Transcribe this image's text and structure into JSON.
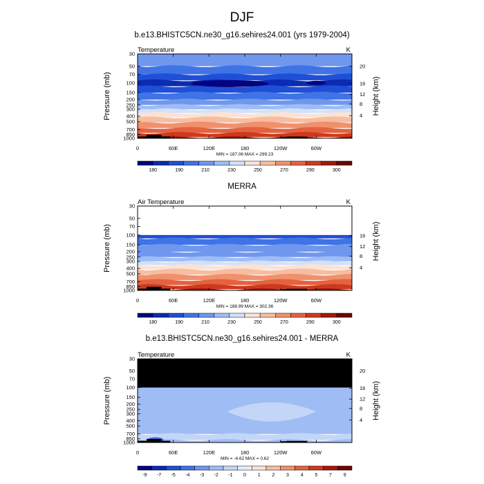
{
  "figure_title": "DJF",
  "pressure_ticks": [
    "30",
    "50",
    "70",
    "100",
    "150",
    "200",
    "250",
    "300",
    "400",
    "500",
    "700",
    "850",
    "1000"
  ],
  "lon_ticks": [
    "0",
    "60E",
    "120E",
    "180",
    "120W",
    "60W"
  ],
  "colors": {
    "abs_scale": [
      "#04047f",
      "#0a2bb2",
      "#1f4fd6",
      "#3f73e6",
      "#6f97ee",
      "#9fbcf5",
      "#d2e0fa",
      "#fbe3d4",
      "#f7bda0",
      "#f0906c",
      "#e4623f",
      "#cc3a1e",
      "#a5170c",
      "#6f0404"
    ],
    "diff_scale": [
      "#04047f",
      "#0a2bb2",
      "#1f4fd6",
      "#3f73e6",
      "#6f97ee",
      "#9fbcf5",
      "#c3d6f7",
      "#e4eefb",
      "#fbe3d4",
      "#f7bda0",
      "#f0906c",
      "#e4623f",
      "#cc3a1e",
      "#a5170c",
      "#6f0404"
    ],
    "missing": "#000000",
    "blank": "#ffffff"
  },
  "chart_data": [
    {
      "type": "heatmap",
      "title": "b.e13.BHISTC5CN.ne30_g16.sehires24.001 (yrs 1979-2004)",
      "left_label": "Temperature",
      "right_label": "K",
      "ylabel": "Pressure (mb)",
      "ylabel_right": "Height (km)",
      "height_ticks": [
        "20",
        "16",
        "12",
        "8",
        "4"
      ],
      "stats": "MIN = 187.06  MAX = 299.23",
      "levels": [
        "180",
        "190",
        "210",
        "230",
        "250",
        "270",
        "290",
        "300"
      ],
      "color_scale": "abs_scale",
      "profile": [
        {
          "p": 30,
          "c": 4
        },
        {
          "p": 50,
          "c": 3
        },
        {
          "p": 70,
          "c": 2
        },
        {
          "p": 90,
          "c": 1
        },
        {
          "p": 115,
          "c": 2
        },
        {
          "p": 150,
          "c": 3
        },
        {
          "p": 200,
          "c": 4
        },
        {
          "p": 250,
          "c": 5
        },
        {
          "p": 300,
          "c": 6
        },
        {
          "p": 350,
          "c": 7
        },
        {
          "p": 420,
          "c": 8
        },
        {
          "p": 520,
          "c": 9
        },
        {
          "p": 650,
          "c": 10
        },
        {
          "p": 800,
          "c": 11
        },
        {
          "p": 950,
          "c": 12
        }
      ],
      "cold_core": {
        "p": 100,
        "lon_from": 90,
        "lon_to": 220,
        "c": 0
      }
    },
    {
      "type": "heatmap",
      "title": "MERRA",
      "left_label": "Air Temperature",
      "right_label": "K",
      "ylabel": "Pressure (mb)",
      "ylabel_right": "Height (km)",
      "height_ticks": [
        "16",
        "12",
        "8",
        "4"
      ],
      "stats": "MIN = 188.99  MAX = 302.36",
      "levels": [
        "180",
        "190",
        "210",
        "230",
        "250",
        "270",
        "290",
        "300"
      ],
      "color_scale": "abs_scale",
      "data_top_p": 100,
      "profile": [
        {
          "p": 100,
          "c": 2
        },
        {
          "p": 115,
          "c": 3
        },
        {
          "p": 150,
          "c": 4
        },
        {
          "p": 200,
          "c": 4
        },
        {
          "p": 250,
          "c": 5
        },
        {
          "p": 300,
          "c": 6
        },
        {
          "p": 350,
          "c": 7
        },
        {
          "p": 420,
          "c": 8
        },
        {
          "p": 520,
          "c": 9
        },
        {
          "p": 650,
          "c": 10
        },
        {
          "p": 800,
          "c": 11
        },
        {
          "p": 950,
          "c": 12
        }
      ]
    },
    {
      "type": "heatmap",
      "title": "b.e13.BHISTC5CN.ne30_g16.sehires24.001 - MERRA",
      "left_label": "Temperature",
      "right_label": "K",
      "ylabel": "Pressure (mb)",
      "ylabel_right": "Height (km)",
      "height_ticks": [
        "20",
        "16",
        "12",
        "8",
        "4"
      ],
      "stats": "MIN =  -4.62  MAX =   0.62",
      "levels": [
        "-9",
        "-7",
        "-5",
        "-4",
        "-3",
        "-2",
        "-1",
        "0",
        "1",
        "2",
        "3",
        "4",
        "5",
        "7",
        "9"
      ],
      "color_scale": "diff_scale",
      "missing_above_p": 100,
      "profile": [
        {
          "p": 100,
          "c": 5
        },
        {
          "p": 700,
          "c": 6
        },
        {
          "p": 900,
          "c": 5
        }
      ],
      "light_zone": {
        "lon_from": 150,
        "lon_to": 300,
        "p_from": 150,
        "p_to": 500,
        "c": 6
      }
    }
  ]
}
